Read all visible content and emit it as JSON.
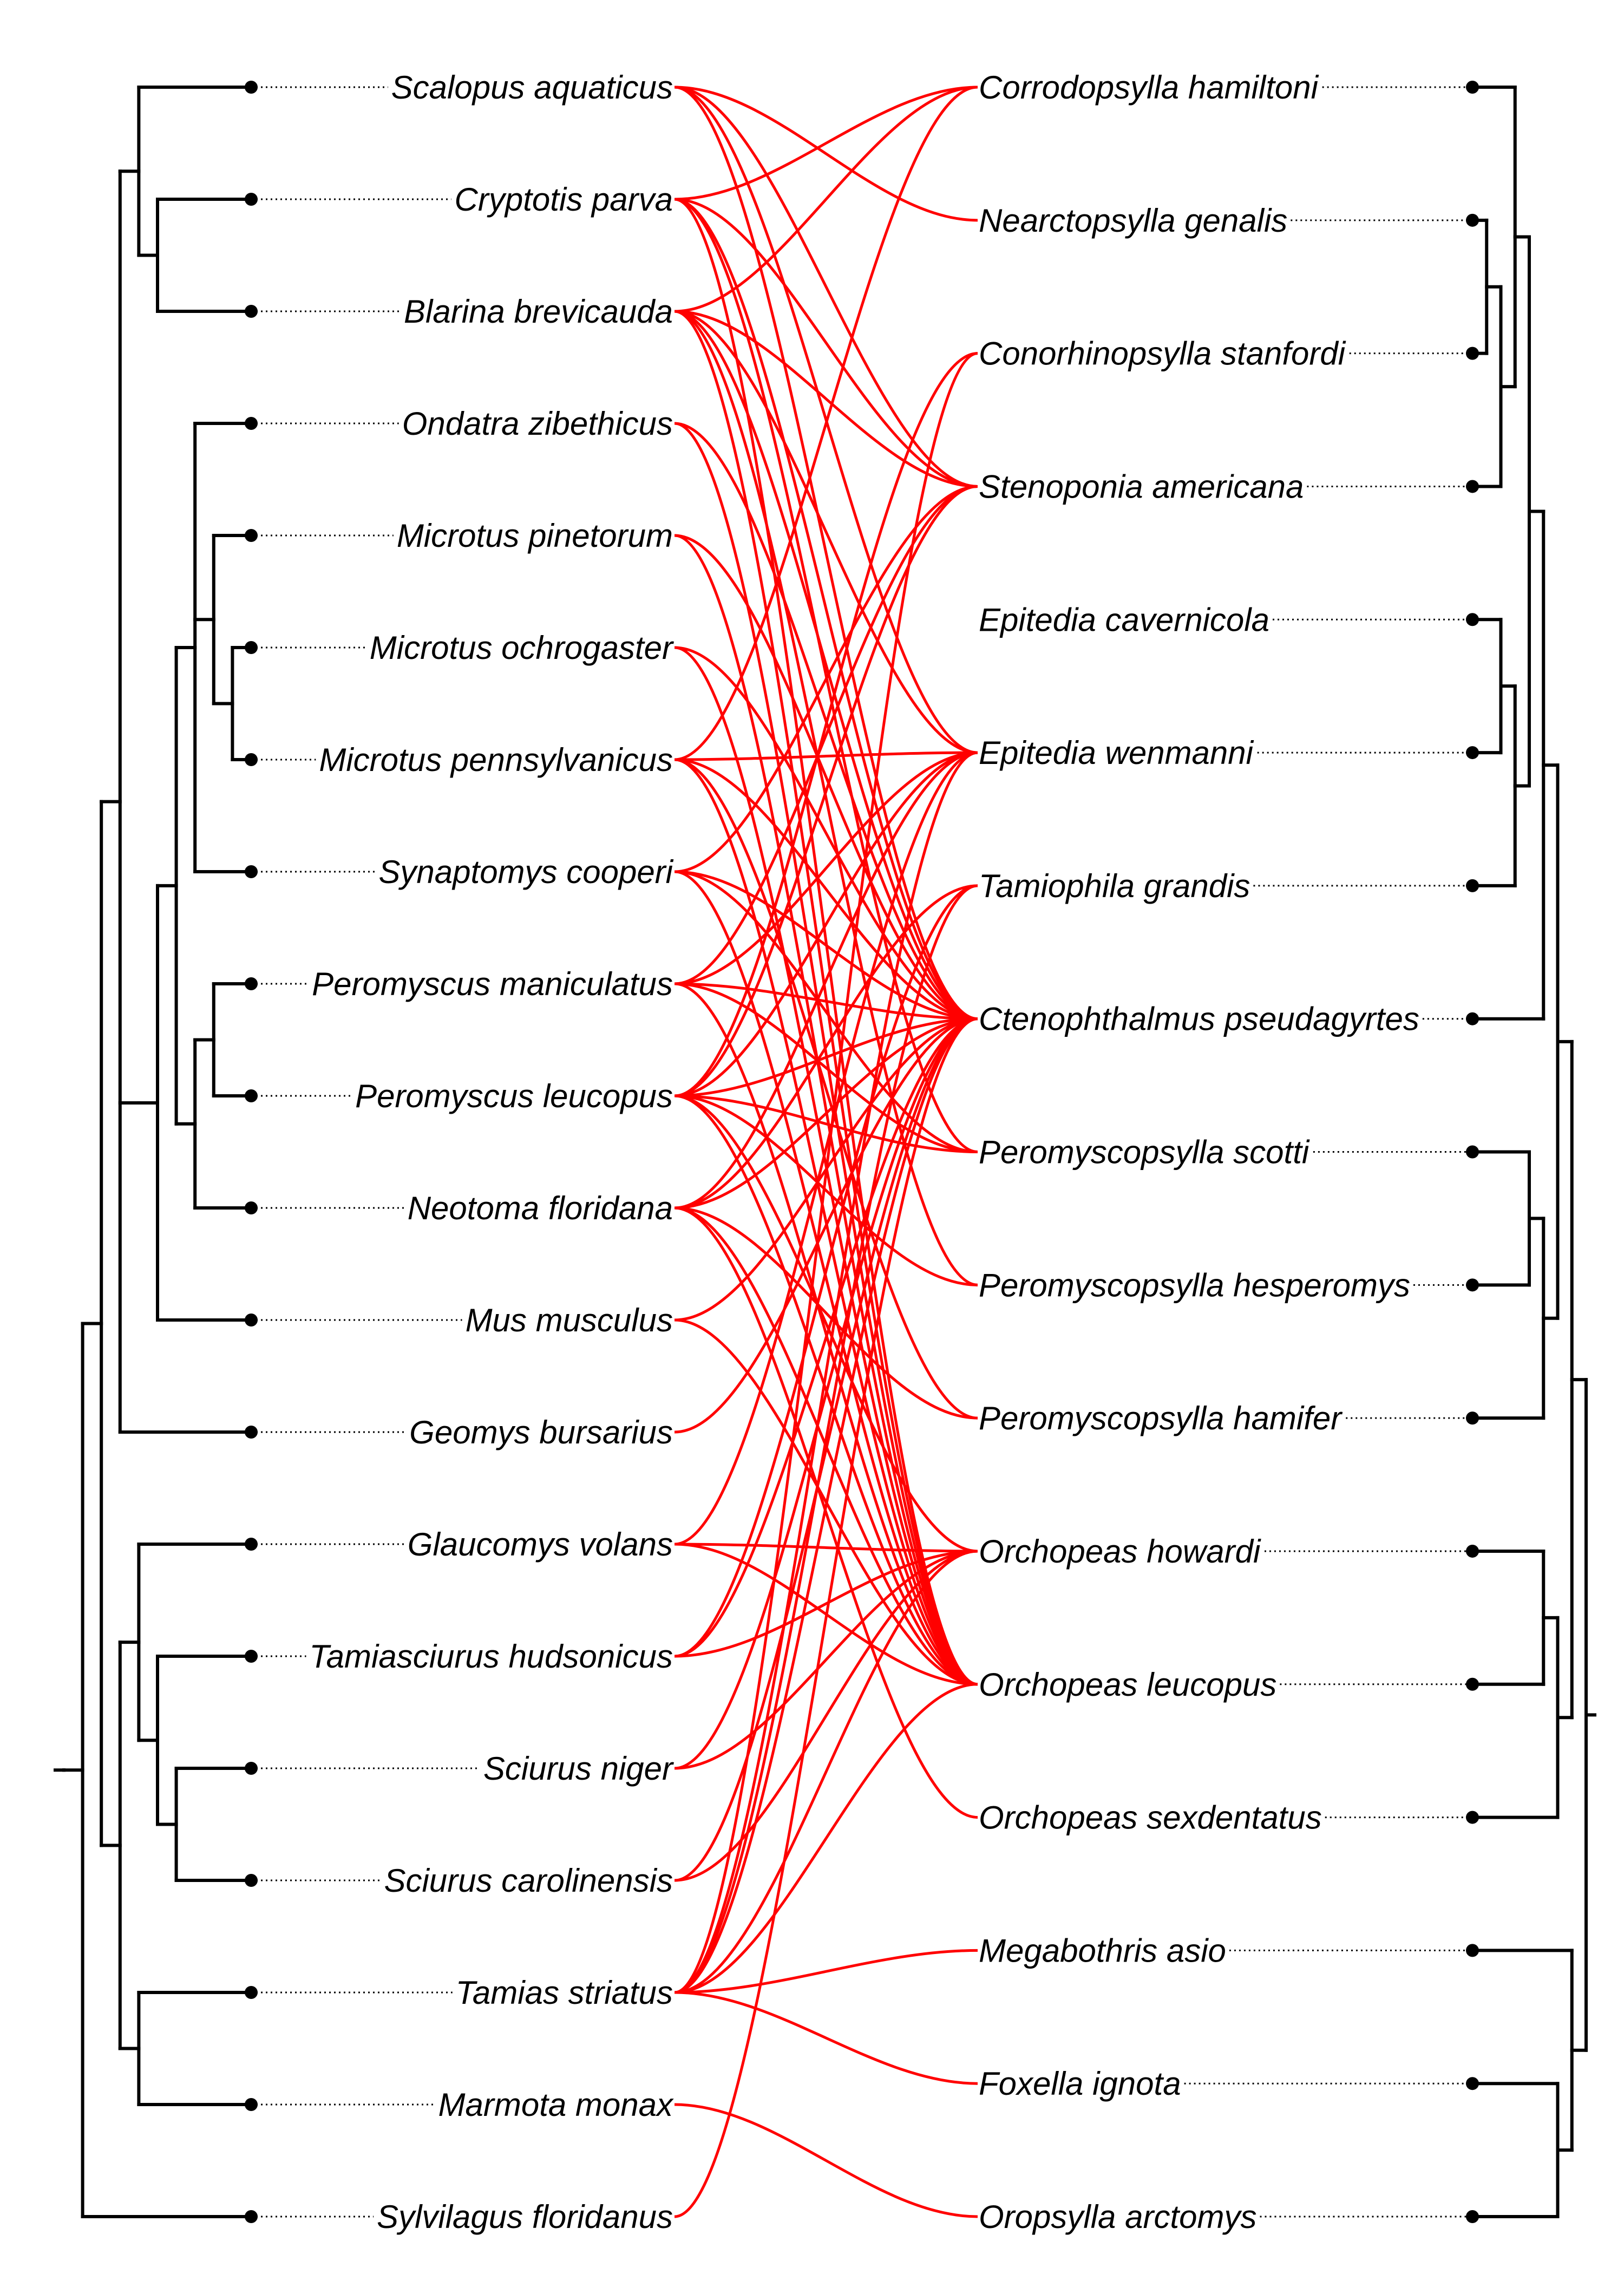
{
  "colors": {
    "association": "#ff0000",
    "tree": "#000000"
  },
  "hosts": [
    "Scalopus aquaticus",
    "Cryptotis parva",
    "Blarina brevicauda",
    "Ondatra zibethicus",
    "Microtus pinetorum",
    "Microtus ochrogaster",
    "Microtus pennsylvanicus",
    "Synaptomys cooperi",
    "Peromyscus maniculatus",
    "Peromyscus leucopus",
    "Neotoma floridana",
    "Mus musculus",
    "Geomys bursarius",
    "Glaucomys volans",
    "Tamiasciurus hudsonicus",
    "Sciurus niger",
    "Sciurus carolinensis",
    "Tamias striatus",
    "Marmota monax",
    "Sylvilagus floridanus"
  ],
  "parasites": [
    "Corrodopsylla hamiltoni",
    "Nearctopsylla genalis",
    "Conorhinopsylla stanfordi",
    "Stenoponia americana",
    "Epitedia cavernicola",
    "Epitedia wenmanni",
    "Tamiophila grandis",
    "Ctenophthalmus pseudagyrtes",
    "Peromyscopsylla scotti",
    "Peromyscopsylla hesperomys",
    "Peromyscopsylla hamifer",
    "Orchopeas howardi",
    "Orchopeas leucopus",
    "Orchopeas sexdentatus",
    "Megabothris asio",
    "Foxella ignota",
    "Oropsylla arctomys"
  ],
  "host_tree": "(((((Scalopus aquaticus,(Cryptotis parva,Blarina brevicauda)),((((Ondatra zibethicus,(Microtus pinetorum,(Microtus ochrogaster,Microtus pennsylvanicus)),Synaptomys cooperi),((Peromyscus maniculatus,Peromyscus leucopus),Neotoma floridana)),Mus musculus)),Geomys bursarius),((Glaucomys volans,(Tamiasciurus hudsonicus,(Sciurus niger,Sciurus carolinensis))),(Tamias striatus,Marmota monax))),Sylvilagus floridanus)",
  "parasite_tree": "((((((Corrodopsylla hamiltoni,((Nearctopsylla genalis,Conorhinopsylla stanfordi),Stenoponia americana)),((Epitedia cavernicola,Epitedia wenmanni),Tamiophila grandis)),Ctenophthalmus pseudagyrtes),((Peromyscopsylla scotti,Peromyscopsylla hesperomys),Peromyscopsylla hamifer)),((Orchopeas howardi,Orchopeas leucopus),Orchopeas sexdentatus)),(Megabothris asio,(Foxella ignota,Oropsylla arctomys)))",
  "associations": [
    [
      "Scalopus aquaticus",
      "Nearctopsylla genalis"
    ],
    [
      "Scalopus aquaticus",
      "Stenoponia americana"
    ],
    [
      "Scalopus aquaticus",
      "Epitedia wenmanni"
    ],
    [
      "Scalopus aquaticus",
      "Ctenophthalmus pseudagyrtes"
    ],
    [
      "Cryptotis parva",
      "Corrodopsylla hamiltoni"
    ],
    [
      "Cryptotis parva",
      "Stenoponia americana"
    ],
    [
      "Cryptotis parva",
      "Ctenophthalmus pseudagyrtes"
    ],
    [
      "Cryptotis parva",
      "Peromyscopsylla scotti"
    ],
    [
      "Cryptotis parva",
      "Orchopeas leucopus"
    ],
    [
      "Blarina brevicauda",
      "Corrodopsylla hamiltoni"
    ],
    [
      "Blarina brevicauda",
      "Stenoponia americana"
    ],
    [
      "Blarina brevicauda",
      "Epitedia wenmanni"
    ],
    [
      "Blarina brevicauda",
      "Ctenophthalmus pseudagyrtes"
    ],
    [
      "Blarina brevicauda",
      "Peromyscopsylla hesperomys"
    ],
    [
      "Blarina brevicauda",
      "Orchopeas leucopus"
    ],
    [
      "Ondatra zibethicus",
      "Ctenophthalmus pseudagyrtes"
    ],
    [
      "Ondatra zibethicus",
      "Orchopeas leucopus"
    ],
    [
      "Microtus pinetorum",
      "Ctenophthalmus pseudagyrtes"
    ],
    [
      "Microtus pinetorum",
      "Orchopeas leucopus"
    ],
    [
      "Microtus ochrogaster",
      "Ctenophthalmus pseudagyrtes"
    ],
    [
      "Microtus ochrogaster",
      "Orchopeas leucopus"
    ],
    [
      "Microtus pennsylvanicus",
      "Corrodopsylla hamiltoni"
    ],
    [
      "Microtus pennsylvanicus",
      "Epitedia wenmanni"
    ],
    [
      "Microtus pennsylvanicus",
      "Ctenophthalmus pseudagyrtes"
    ],
    [
      "Microtus pennsylvanicus",
      "Peromyscopsylla hamifer"
    ],
    [
      "Microtus pennsylvanicus",
      "Orchopeas leucopus"
    ],
    [
      "Synaptomys cooperi",
      "Stenoponia americana"
    ],
    [
      "Synaptomys cooperi",
      "Ctenophthalmus pseudagyrtes"
    ],
    [
      "Synaptomys cooperi",
      "Peromyscopsylla scotti"
    ],
    [
      "Synaptomys cooperi",
      "Orchopeas leucopus"
    ],
    [
      "Peromyscus maniculatus",
      "Stenoponia americana"
    ],
    [
      "Peromyscus maniculatus",
      "Epitedia wenmanni"
    ],
    [
      "Peromyscus maniculatus",
      "Ctenophthalmus pseudagyrtes"
    ],
    [
      "Peromyscus maniculatus",
      "Peromyscopsylla scotti"
    ],
    [
      "Peromyscus maniculatus",
      "Orchopeas leucopus"
    ],
    [
      "Peromyscus leucopus",
      "Conorhinopsylla stanfordi"
    ],
    [
      "Peromyscus leucopus",
      "Stenoponia americana"
    ],
    [
      "Peromyscus leucopus",
      "Epitedia wenmanni"
    ],
    [
      "Peromyscus leucopus",
      "Ctenophthalmus pseudagyrtes"
    ],
    [
      "Peromyscus leucopus",
      "Peromyscopsylla scotti"
    ],
    [
      "Peromyscus leucopus",
      "Peromyscopsylla hesperomys"
    ],
    [
      "Peromyscus leucopus",
      "Orchopeas howardi"
    ],
    [
      "Peromyscus leucopus",
      "Orchopeas leucopus"
    ],
    [
      "Neotoma floridana",
      "Epitedia wenmanni"
    ],
    [
      "Neotoma floridana",
      "Tamiophila grandis"
    ],
    [
      "Neotoma floridana",
      "Ctenophthalmus pseudagyrtes"
    ],
    [
      "Neotoma floridana",
      "Peromyscopsylla hamifer"
    ],
    [
      "Neotoma floridana",
      "Orchopeas leucopus"
    ],
    [
      "Neotoma floridana",
      "Orchopeas sexdentatus"
    ],
    [
      "Mus musculus",
      "Ctenophthalmus pseudagyrtes"
    ],
    [
      "Mus musculus",
      "Orchopeas leucopus"
    ],
    [
      "Geomys bursarius",
      "Ctenophthalmus pseudagyrtes"
    ],
    [
      "Glaucomys volans",
      "Epitedia wenmanni"
    ],
    [
      "Glaucomys volans",
      "Orchopeas howardi"
    ],
    [
      "Glaucomys volans",
      "Orchopeas leucopus"
    ],
    [
      "Tamiasciurus hudsonicus",
      "Tamiophila grandis"
    ],
    [
      "Tamiasciurus hudsonicus",
      "Ctenophthalmus pseudagyrtes"
    ],
    [
      "Tamiasciurus hudsonicus",
      "Orchopeas howardi"
    ],
    [
      "Sciurus niger",
      "Ctenophthalmus pseudagyrtes"
    ],
    [
      "Sciurus niger",
      "Orchopeas howardi"
    ],
    [
      "Sciurus carolinensis",
      "Ctenophthalmus pseudagyrtes"
    ],
    [
      "Sciurus carolinensis",
      "Orchopeas howardi"
    ],
    [
      "Tamias striatus",
      "Conorhinopsylla stanfordi"
    ],
    [
      "Tamias striatus",
      "Epitedia wenmanni"
    ],
    [
      "Tamias striatus",
      "Tamiophila grandis"
    ],
    [
      "Tamias striatus",
      "Ctenophthalmus pseudagyrtes"
    ],
    [
      "Tamias striatus",
      "Orchopeas howardi"
    ],
    [
      "Tamias striatus",
      "Orchopeas leucopus"
    ],
    [
      "Tamias striatus",
      "Megabothris asio"
    ],
    [
      "Tamias striatus",
      "Foxella ignota"
    ],
    [
      "Marmota monax",
      "Oropsylla arctomys"
    ],
    [
      "Sylvilagus floridanus",
      "Ctenophthalmus pseudagyrtes"
    ]
  ]
}
